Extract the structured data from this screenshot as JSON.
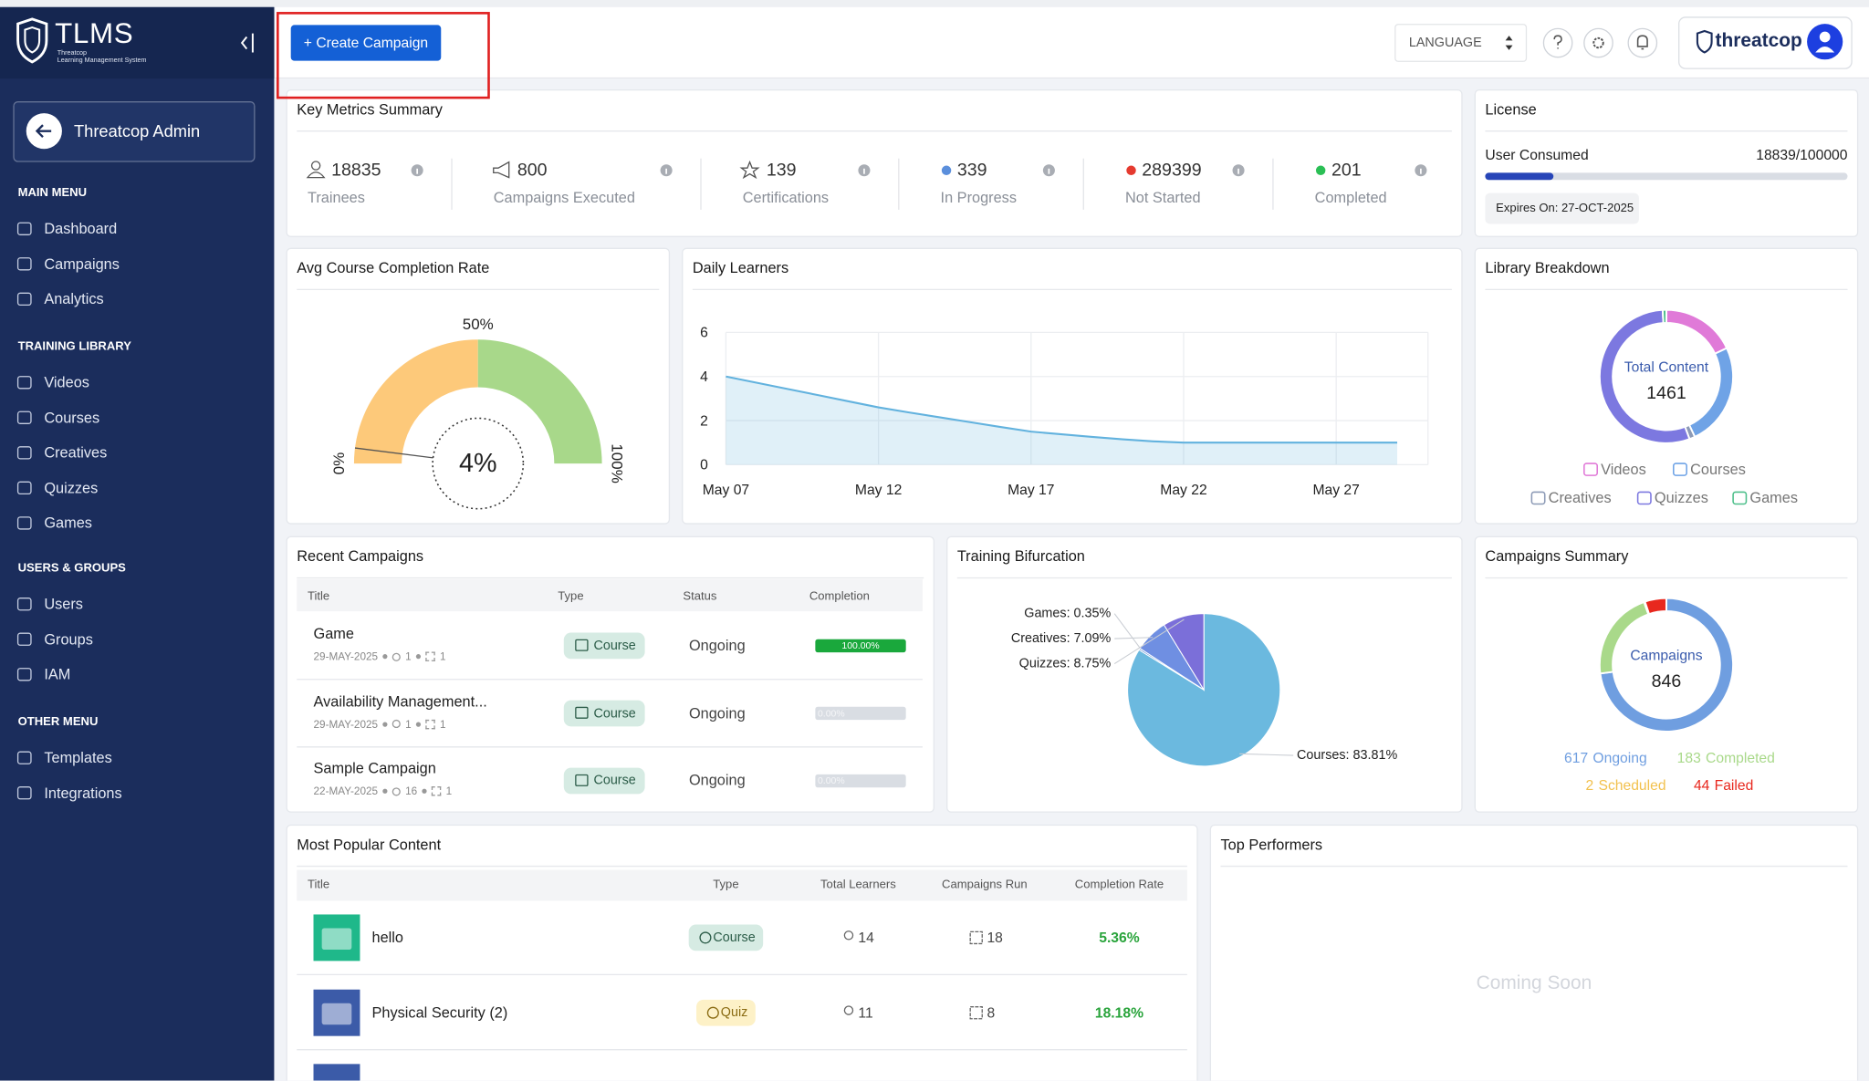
{
  "sidebar": {
    "brand": "TLMS",
    "brand_sub": [
      "Threatcop",
      "Learning Management System"
    ],
    "user": "Threatcop Admin",
    "sections": [
      {
        "title": "MAIN MENU",
        "items": [
          "Dashboard",
          "Campaigns",
          "Analytics"
        ]
      },
      {
        "title": "TRAINING LIBRARY",
        "items": [
          "Videos",
          "Courses",
          "Creatives",
          "Quizzes",
          "Games"
        ]
      },
      {
        "title": "USERS & GROUPS",
        "items": [
          "Users",
          "Groups",
          "IAM"
        ]
      },
      {
        "title": "OTHER MENU",
        "items": [
          "Templates",
          "Integrations"
        ]
      }
    ]
  },
  "header": {
    "create_button": "+ Create Campaign",
    "language": "LANGUAGE",
    "brand": "threatcop"
  },
  "key_metrics": {
    "title": "Key Metrics Summary",
    "items": [
      {
        "value": 18835,
        "label": "Trainees"
      },
      {
        "value": 800,
        "label": "Campaigns Executed"
      },
      {
        "value": 139,
        "label": "Certifications"
      },
      {
        "value": 339,
        "label": "In Progress",
        "color": "#5b8fdc"
      },
      {
        "value": 289399,
        "label": "Not Started",
        "color": "#e53a2f"
      },
      {
        "value": 201,
        "label": "Completed",
        "color": "#2bbf55"
      }
    ]
  },
  "license": {
    "title": "License",
    "label": "User Consumed",
    "consumed": 18839,
    "total": 100000,
    "value_label": "18839/100000",
    "color": "#2745b8",
    "expires": "Expires On: 27-OCT-2025"
  },
  "avg_completion": {
    "type": "gauge",
    "title": "Avg Course Completion Rate",
    "value": 4,
    "value_label": "4%",
    "ticks": [
      {
        "value": 0,
        "label": "0%"
      },
      {
        "value": 50,
        "label": "50%"
      },
      {
        "value": 100,
        "label": "100%"
      }
    ],
    "colors": [
      "#fdc97a",
      "#a8d88a"
    ]
  },
  "daily_learners": {
    "type": "line",
    "title": "Daily Learners",
    "categories": [
      "May 07",
      null,
      null,
      null,
      null,
      "May 12",
      null,
      null,
      null,
      null,
      "May 17",
      null,
      null,
      null,
      null,
      "May 22",
      null,
      null,
      null,
      null,
      "May 27",
      null,
      null
    ],
    "values": [
      4.0,
      3.72,
      3.44,
      3.16,
      2.88,
      2.6,
      2.37,
      2.15,
      1.93,
      1.71,
      1.5,
      1.38,
      1.26,
      1.15,
      1.06,
      1.0,
      1,
      1,
      1,
      1,
      1,
      1,
      1
    ],
    "color": "#62b2de",
    "ylim": [
      0,
      6
    ],
    "yticks": [
      0,
      2,
      4,
      6
    ],
    "grid": true
  },
  "library": {
    "type": "donut",
    "title": "Library Breakdown",
    "center_label": "Total Content",
    "total": 1461,
    "series": [
      {
        "name": "Videos",
        "color": "#e07ad8",
        "value": 263
      },
      {
        "name": "Courses",
        "color": "#6fa3e6",
        "value": 365
      },
      {
        "name": "Creatives",
        "color": "#8c9ab6",
        "value": 20
      },
      {
        "name": "Quizzes",
        "color": "#7c78e0",
        "value": 800
      },
      {
        "name": "Games",
        "color": "#4cbf8a",
        "value": 13
      }
    ]
  },
  "recent_campaigns": {
    "title": "Recent Campaigns",
    "columns": [
      "Title",
      "Type",
      "Status",
      "Completion"
    ],
    "rows": [
      {
        "name": "Game",
        "date": "29-MAY-2025",
        "users": 1,
        "groups": 1,
        "type": "Course",
        "status": "Ongoing",
        "completion": 100,
        "completion_label": "100.00%"
      },
      {
        "name": "Availability Management...",
        "date": "29-MAY-2025",
        "users": 1,
        "groups": 1,
        "type": "Course",
        "status": "Ongoing",
        "completion": 0,
        "completion_label": "0.00%"
      },
      {
        "name": "Sample Campaign",
        "date": "22-MAY-2025",
        "users": 16,
        "groups": 1,
        "type": "Course",
        "status": "Ongoing",
        "completion": 0,
        "completion_label": "0.00%"
      }
    ]
  },
  "training_bifurcation": {
    "type": "pie",
    "title": "Training Bifurcation",
    "values": [
      83.81,
      0.35,
      7.09,
      8.75
    ],
    "value_labels": [
      "Courses: 83.81%",
      "Games: 0.35%",
      "Creatives: 7.09%",
      "Quizzes: 8.75%"
    ],
    "colors": [
      "#6bb9df",
      "#5a8ad8",
      "#6f8fe2",
      "#7b6fd9"
    ]
  },
  "campaigns_summary": {
    "type": "donut",
    "title": "Campaigns Summary",
    "center_label": "Campaigns",
    "total": 846,
    "series": [
      {
        "name": "Ongoing",
        "color": "#6f9ee0",
        "value": 617
      },
      {
        "name": "Completed",
        "color": "#a9d98a",
        "value": 183
      },
      {
        "name": "Scheduled",
        "color": "#f2c14e",
        "value": 2
      },
      {
        "name": "Failed",
        "color": "#e8281e",
        "value": 44
      }
    ]
  },
  "popular_content": {
    "title": "Most Popular Content",
    "columns": [
      "Title",
      "Type",
      "Total Learners",
      "Campaigns Run",
      "Completion Rate"
    ],
    "rows": [
      {
        "name": "hello",
        "type": "Course",
        "learners": 14,
        "campaigns": 18,
        "completion_rate": "5.36%"
      },
      {
        "name": "Physical Security (2)",
        "type": "Quiz",
        "learners": 11,
        "campaigns": 8,
        "completion_rate": "18.18%"
      }
    ]
  },
  "top_performers": {
    "title": "Top Performers",
    "message": "Coming Soon"
  }
}
